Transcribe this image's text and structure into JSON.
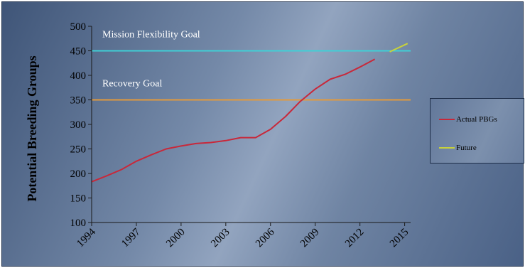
{
  "chart_data": {
    "type": "line",
    "title": "",
    "ylabel": "Potential Breeding Groups",
    "xlabel": "",
    "ylim": [
      100,
      500
    ],
    "yticks": [
      100,
      150,
      200,
      250,
      300,
      350,
      400,
      450,
      500
    ],
    "xlim": [
      1994,
      2017
    ],
    "xticks": [
      "1994",
      "1997",
      "2000",
      "2003",
      "2006",
      "2009",
      "2012",
      "2015"
    ],
    "reference_lines": [
      {
        "label": "Mission Flexibility Goal",
        "y": 450,
        "color": "#3fd0d6"
      },
      {
        "label": "Recovery  Goal",
        "y": 350,
        "color": "#e39a3c"
      }
    ],
    "series": [
      {
        "name": "Actual PBGs",
        "color": "#c8283a",
        "x": [
          1994,
          1995,
          1996,
          1997,
          1998,
          1999,
          2000,
          2001,
          2002,
          2003,
          2004,
          2005,
          2006,
          2007,
          2008,
          2009,
          2010,
          2011,
          2012,
          2013
        ],
        "y": [
          183,
          195,
          208,
          225,
          238,
          250,
          256,
          261,
          263,
          267,
          273,
          273,
          290,
          316,
          347,
          372,
          392,
          402,
          417,
          433
        ]
      },
      {
        "name": "Future",
        "color": "#c8d23a",
        "x": [
          2014,
          2015.2
        ],
        "y": [
          448,
          465
        ]
      }
    ],
    "legend_position": "right",
    "grid": false
  }
}
